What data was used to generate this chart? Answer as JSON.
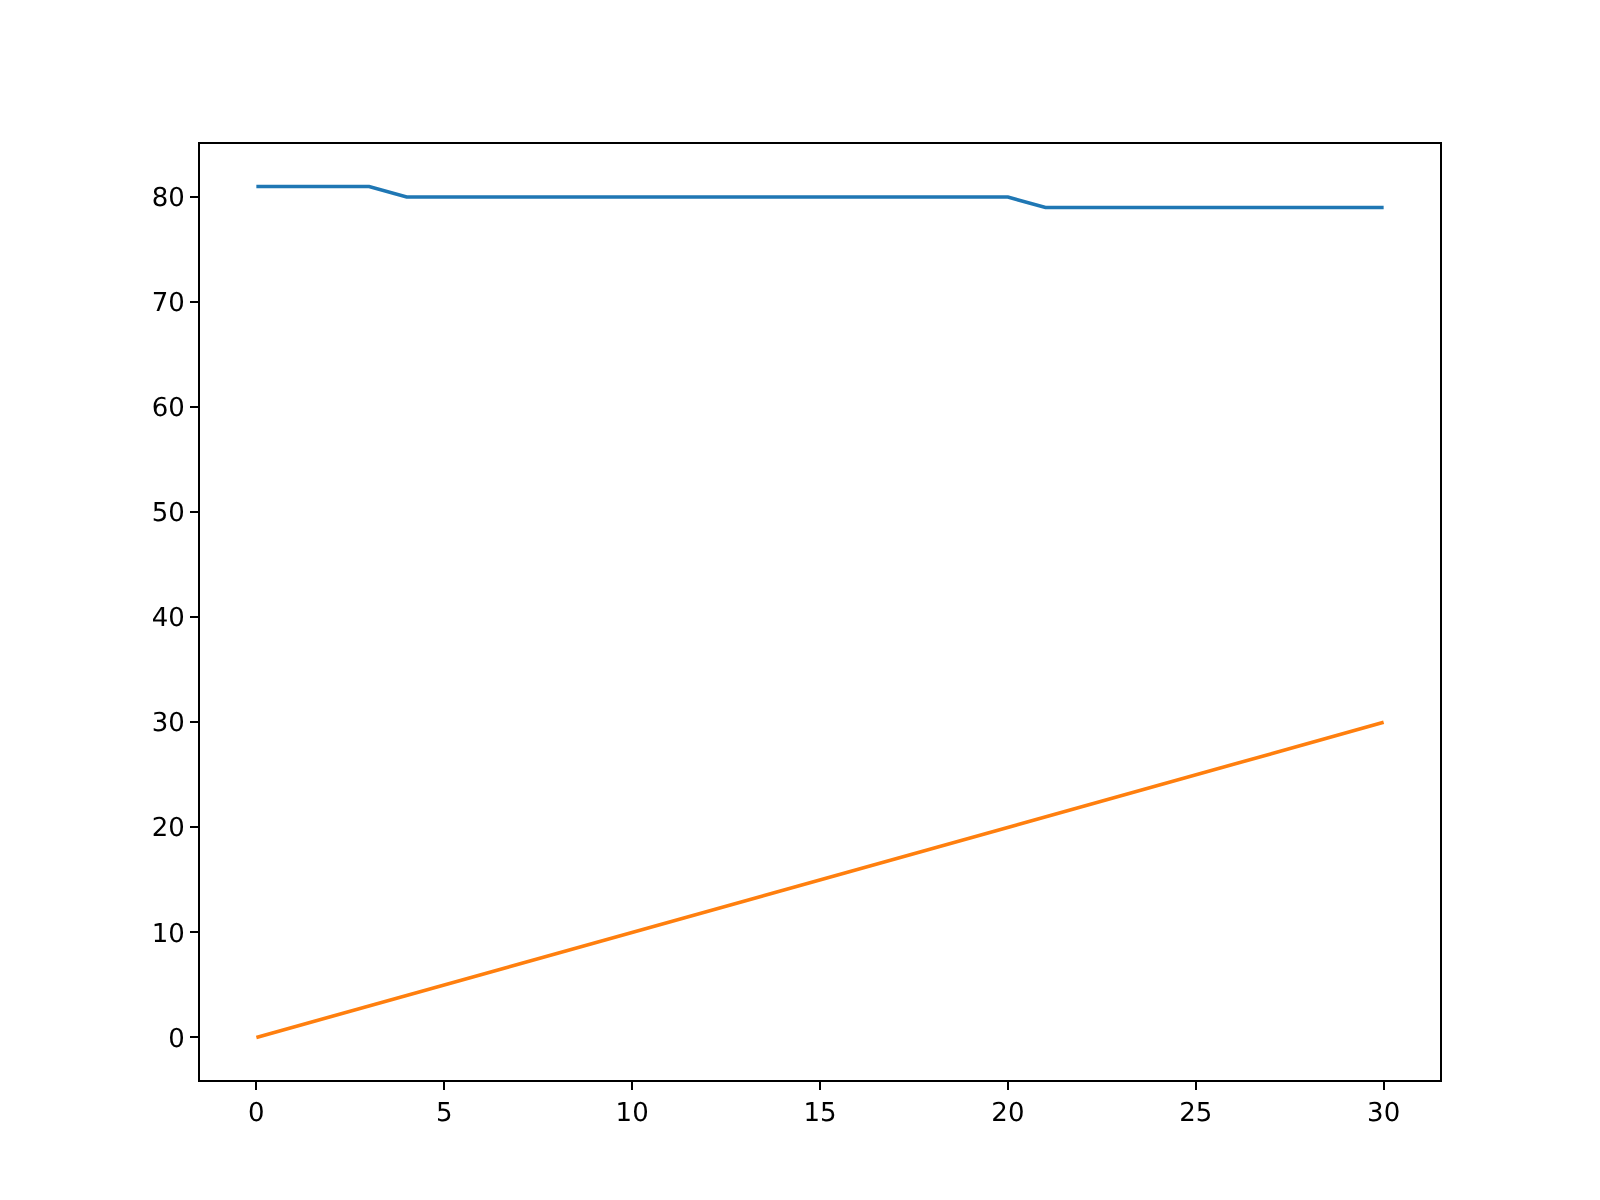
{
  "chart_data": {
    "type": "line",
    "xlim": [
      -1.5,
      31.5
    ],
    "ylim": [
      -4.05,
      85.05
    ],
    "xticks": [
      0,
      5,
      10,
      15,
      20,
      25,
      30
    ],
    "yticks": [
      0,
      10,
      20,
      30,
      40,
      50,
      60,
      70,
      80
    ],
    "grid": false,
    "series": [
      {
        "color": "#1f77b4",
        "x": [
          0,
          3,
          4,
          20,
          21,
          30
        ],
        "values": [
          81,
          81,
          80,
          80,
          79,
          79
        ]
      },
      {
        "color": "#ff7f0e",
        "x": [
          0,
          30
        ],
        "values": [
          0,
          30
        ]
      }
    ]
  }
}
